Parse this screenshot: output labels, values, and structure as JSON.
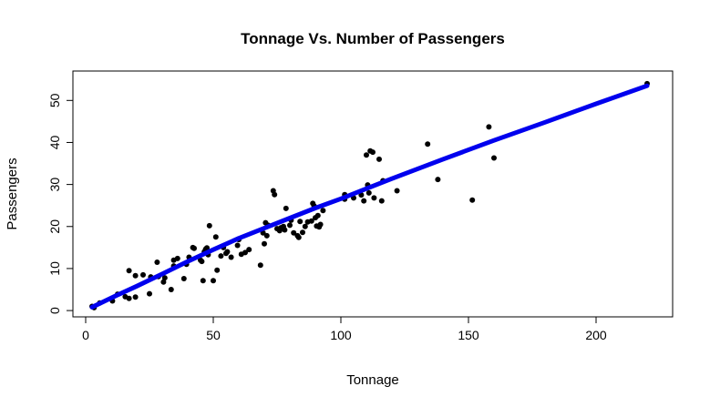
{
  "chart_data": {
    "type": "scatter",
    "title": "Tonnage Vs. Number of Passengers",
    "xlabel": "Tonnage",
    "ylabel": "Passengers",
    "xlim": [
      -5,
      230
    ],
    "ylim": [
      -1.5,
      57
    ],
    "xticks": [
      0,
      50,
      100,
      150,
      200
    ],
    "yticks": [
      0,
      10,
      20,
      30,
      40,
      50
    ],
    "point_color": "#000000",
    "line_color": "#0000ee",
    "grid": false,
    "legend": "none",
    "points": [
      [
        2.5,
        1.0
      ],
      [
        3.3,
        0.7
      ],
      [
        5.5,
        1.8
      ],
      [
        10.5,
        2.3
      ],
      [
        12.5,
        3.9
      ],
      [
        15.5,
        3.3
      ],
      [
        17.0,
        2.9
      ],
      [
        17.0,
        9.5
      ],
      [
        19.5,
        3.2
      ],
      [
        19.5,
        8.3
      ],
      [
        22.5,
        8.5
      ],
      [
        25.0,
        4.0
      ],
      [
        25.5,
        8.0
      ],
      [
        28.0,
        11.5
      ],
      [
        28.5,
        8.1
      ],
      [
        30.5,
        6.8
      ],
      [
        31.0,
        7.8
      ],
      [
        33.5,
        5.0
      ],
      [
        34.5,
        12.0
      ],
      [
        34.5,
        10.6
      ],
      [
        36.0,
        12.4
      ],
      [
        38.5,
        7.6
      ],
      [
        39.5,
        11.0
      ],
      [
        40.5,
        12.7
      ],
      [
        42.0,
        15.0
      ],
      [
        42.5,
        14.8
      ],
      [
        45.0,
        12.0
      ],
      [
        45.5,
        11.7
      ],
      [
        46.0,
        7.1
      ],
      [
        46.5,
        14.0
      ],
      [
        47.0,
        14.6
      ],
      [
        47.5,
        14.9
      ],
      [
        48.0,
        13.3
      ],
      [
        48.5,
        20.2
      ],
      [
        50.0,
        7.1
      ],
      [
        51.0,
        17.5
      ],
      [
        51.5,
        9.6
      ],
      [
        53.0,
        13.0
      ],
      [
        54.0,
        15.0
      ],
      [
        55.0,
        13.6
      ],
      [
        55.5,
        14.0
      ],
      [
        57.0,
        12.7
      ],
      [
        59.5,
        15.5
      ],
      [
        60.0,
        16.9
      ],
      [
        61.0,
        13.4
      ],
      [
        62.5,
        13.8
      ],
      [
        64.0,
        14.5
      ],
      [
        68.5,
        10.8
      ],
      [
        69.5,
        18.5
      ],
      [
        70.0,
        15.9
      ],
      [
        70.5,
        20.9
      ],
      [
        71.0,
        17.8
      ],
      [
        71.5,
        20.3
      ],
      [
        73.5,
        28.5
      ],
      [
        74.0,
        27.6
      ],
      [
        75.0,
        19.5
      ],
      [
        76.0,
        19.0
      ],
      [
        76.5,
        19.7
      ],
      [
        77.5,
        20.0
      ],
      [
        78.0,
        19.2
      ],
      [
        78.5,
        24.3
      ],
      [
        80.0,
        20.3
      ],
      [
        80.5,
        21.5
      ],
      [
        81.5,
        18.5
      ],
      [
        83.0,
        17.8
      ],
      [
        83.5,
        17.4
      ],
      [
        84.0,
        21.2
      ],
      [
        85.0,
        18.6
      ],
      [
        86.0,
        20.0
      ],
      [
        87.0,
        21.1
      ],
      [
        88.5,
        21.3
      ],
      [
        89.0,
        25.5
      ],
      [
        89.5,
        24.9
      ],
      [
        90.0,
        22.1
      ],
      [
        90.5,
        20.1
      ],
      [
        91.0,
        22.6
      ],
      [
        91.5,
        19.9
      ],
      [
        92.0,
        20.5
      ],
      [
        93.0,
        23.8
      ],
      [
        101.5,
        26.5
      ],
      [
        101.5,
        27.6
      ],
      [
        105.0,
        26.8
      ],
      [
        108.0,
        27.5
      ],
      [
        109.0,
        26.1
      ],
      [
        110.5,
        29.9
      ],
      [
        110.0,
        37.0
      ],
      [
        111.0,
        28.0
      ],
      [
        111.5,
        38.0
      ],
      [
        112.5,
        37.7
      ],
      [
        113.0,
        26.8
      ],
      [
        115.0,
        36.0
      ],
      [
        116.0,
        26.1
      ],
      [
        116.5,
        30.9
      ],
      [
        122.0,
        28.5
      ],
      [
        134.0,
        39.6
      ],
      [
        138.0,
        31.2
      ],
      [
        151.5,
        26.3
      ],
      [
        158.0,
        43.7
      ],
      [
        160.0,
        36.3
      ],
      [
        220.0,
        54.0
      ]
    ],
    "fit_line": [
      [
        2.5,
        0.8
      ],
      [
        10,
        3.0
      ],
      [
        20,
        5.8
      ],
      [
        30,
        8.7
      ],
      [
        40,
        11.7
      ],
      [
        50,
        14.5
      ],
      [
        60,
        17.2
      ],
      [
        70,
        19.6
      ],
      [
        80,
        22.0
      ],
      [
        90,
        24.4
      ],
      [
        100,
        26.6
      ],
      [
        110,
        29.0
      ],
      [
        120,
        31.4
      ],
      [
        140,
        36.0
      ],
      [
        160,
        40.5
      ],
      [
        180,
        44.8
      ],
      [
        200,
        49.2
      ],
      [
        220,
        53.5
      ]
    ]
  }
}
